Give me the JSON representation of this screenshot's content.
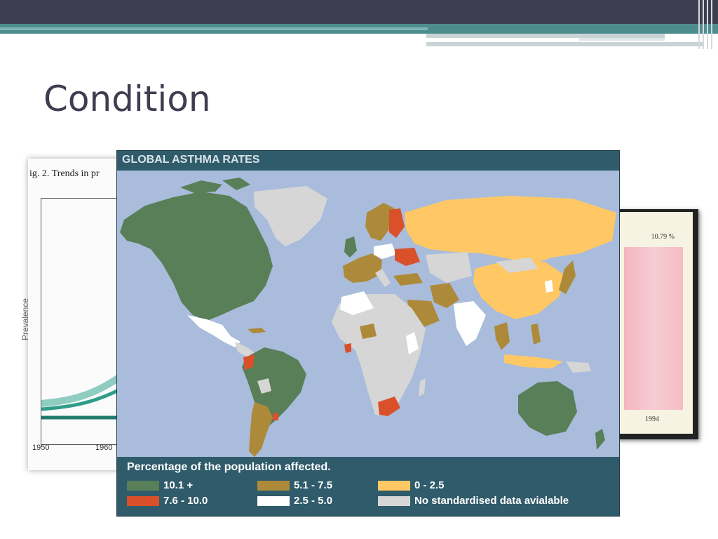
{
  "slide": {
    "title": "Condition"
  },
  "background_figures": {
    "left_caption": "ig. 2. Trends in pr",
    "left_ylabel": "Prevalence",
    "left_xticks": [
      "1950",
      "1960"
    ],
    "right_value": "10.79 %",
    "right_year": "1994"
  },
  "map": {
    "title": "GLOBAL ASTHMA RATES",
    "legend_title": "Percentage of the population affected.",
    "legend": [
      {
        "label": "10.1 +",
        "color": "#587f58"
      },
      {
        "label": "7.6 - 10.0",
        "color": "#d9502a"
      },
      {
        "label": "5.1 - 7.5",
        "color": "#ad8a3a"
      },
      {
        "label": "2.5 - 5.0",
        "color": "#ffffff"
      },
      {
        "label": "0 - 2.5",
        "color": "#ffc864"
      },
      {
        "label": "No standardised data avialable",
        "color": "#d6d6d6"
      }
    ],
    "colors": {
      "ocean": "#a9bcdc",
      "header": "#2f5b6b"
    }
  }
}
